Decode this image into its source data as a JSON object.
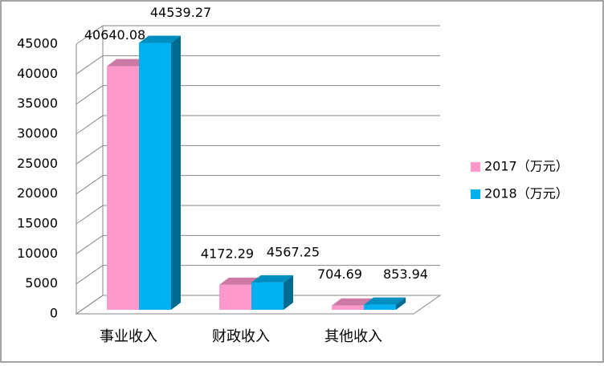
{
  "chart_data": {
    "type": "bar3d",
    "categories": [
      "事业收入",
      "财政收入",
      "其他收入"
    ],
    "series": [
      {
        "name": "2017（万元）",
        "color": "#ff99cc",
        "values": [
          40640.08,
          4172.29,
          704.69
        ]
      },
      {
        "name": "2018（万元）",
        "color": "#00b0f0",
        "values": [
          44539.27,
          4567.25,
          853.94
        ]
      }
    ],
    "ylim": [
      0,
      45000
    ],
    "yticks": [
      0,
      5000,
      10000,
      15000,
      20000,
      25000,
      30000,
      35000,
      40000,
      45000
    ],
    "grid": true,
    "legend": "right"
  }
}
